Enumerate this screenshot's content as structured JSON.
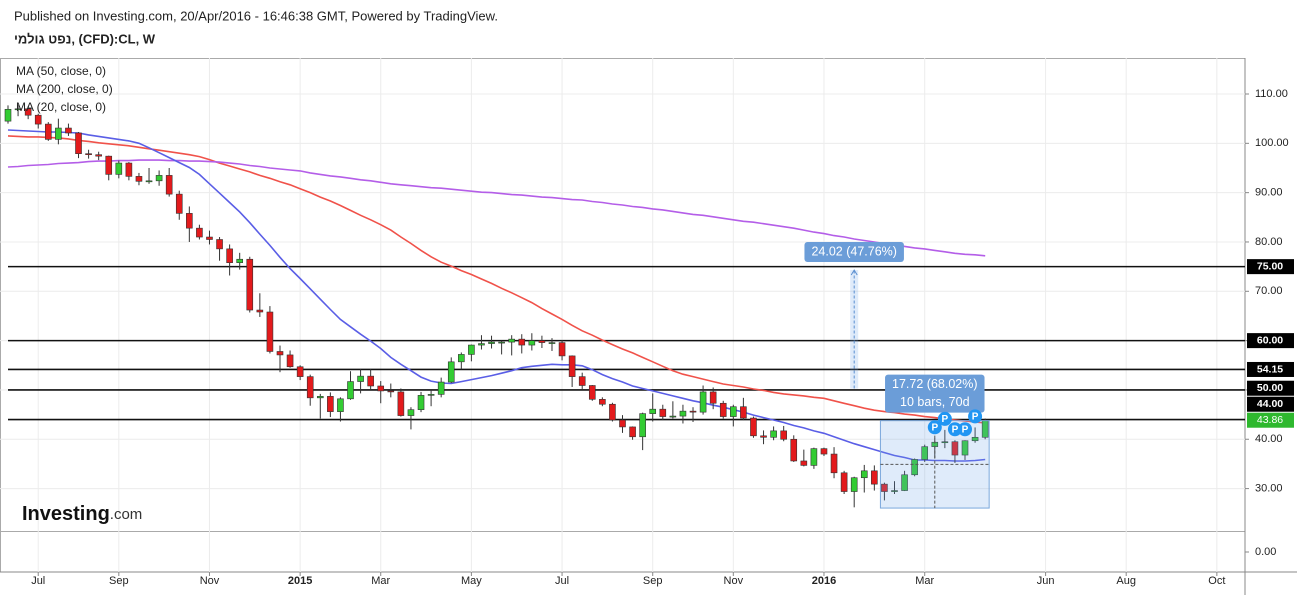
{
  "chart_data": {
    "type": "candlestick",
    "source": "Published on Investing.com, 20/Apr/2016 - 16:46:38 GMT, Powered by TradingView.",
    "title": "נפט גולמי, (CFD):CL, W",
    "watermark": {
      "brand": "Investing",
      "suffix": ".com"
    },
    "categories": [
      null,
      null,
      null,
      "Jul",
      null,
      null,
      null,
      null,
      null,
      null,
      null,
      "Sep",
      null,
      null,
      null,
      null,
      null,
      null,
      null,
      null,
      "Nov",
      null,
      null,
      null,
      null,
      null,
      null,
      null,
      null,
      "2015",
      null,
      null,
      null,
      null,
      null,
      null,
      null,
      "Mar",
      null,
      null,
      null,
      null,
      null,
      null,
      null,
      null,
      "May",
      null,
      null,
      null,
      null,
      null,
      null,
      null,
      null,
      "Jul",
      null,
      null,
      null,
      null,
      null,
      null,
      null,
      null,
      "Sep",
      null,
      null,
      null,
      null,
      null,
      null,
      null,
      "Nov",
      null,
      null,
      null,
      null,
      null,
      null,
      null,
      null,
      "2016",
      null,
      null,
      null,
      null,
      null,
      null,
      null,
      null,
      null,
      "Mar",
      null,
      null,
      null,
      null,
      null,
      null,
      null,
      null,
      null,
      null,
      null,
      "Jun",
      null,
      null,
      null,
      null,
      null,
      null,
      null,
      "Aug",
      null,
      null,
      null,
      null,
      null,
      null,
      null,
      null,
      "Oct",
      null,
      null
    ],
    "candles": {
      "up_color": "#33cc33",
      "down_color": "#e31a1c",
      "open": [
        104.5,
        106.9,
        107.0,
        105.7,
        103.9,
        100.8,
        103.1,
        102.1,
        97.9,
        97.7,
        97.4,
        93.7,
        96.0,
        93.3,
        92.3,
        92.4,
        93.5,
        89.7,
        85.8,
        82.8,
        81.0,
        80.5,
        78.6,
        75.8,
        76.5,
        66.2,
        65.8,
        57.8,
        57.1,
        54.7,
        52.7,
        48.4,
        48.7,
        45.6,
        48.2,
        51.7,
        52.8,
        50.8,
        49.8,
        49.6,
        44.8,
        46.0,
        48.9,
        49.1,
        51.6,
        55.7,
        57.2,
        59.1,
        59.4,
        59.7,
        59.7,
        60.3,
        59.1,
        60.0,
        59.6,
        59.6,
        56.9,
        52.7,
        50.9,
        48.1,
        47.1,
        43.9,
        42.5,
        40.5,
        45.2,
        46.1,
        44.6,
        44.7,
        45.7,
        45.5,
        49.6,
        47.3,
        44.6,
        46.6,
        44.3,
        40.7,
        40.4,
        41.7,
        40.0,
        35.6,
        34.7,
        38.1,
        37.0,
        33.2,
        29.4,
        32.2,
        33.6,
        30.9,
        29.4,
        29.6,
        32.8,
        35.9,
        38.5,
        39.4,
        39.5,
        36.8,
        39.7,
        40.4,
        null,
        null,
        null,
        null,
        null,
        null,
        null,
        null,
        null,
        null,
        null,
        null,
        null,
        null,
        null,
        null,
        null,
        null,
        null,
        null,
        null,
        null,
        null,
        null,
        null
      ],
      "high": [
        107.7,
        107.7,
        107.5,
        106.0,
        104.3,
        105.0,
        104.0,
        102.3,
        98.7,
        98.3,
        97.5,
        96.5,
        96.2,
        94.0,
        95.0,
        94.5,
        95.0,
        90.4,
        87.2,
        83.5,
        82.3,
        81.0,
        79.5,
        77.8,
        77.0,
        69.6,
        67.0,
        59.0,
        58.0,
        55.0,
        53.1,
        49.2,
        49.5,
        48.5,
        53.8,
        54.2,
        54.2,
        51.8,
        51.3,
        50.3,
        46.5,
        49.6,
        50.0,
        52.5,
        56.6,
        57.6,
        59.2,
        61.1,
        61.0,
        60.0,
        61.1,
        61.3,
        61.5,
        61.0,
        60.5,
        60.1,
        57.0,
        53.5,
        51.0,
        48.5,
        47.4,
        44.9,
        42.6,
        45.4,
        49.3,
        47.0,
        47.7,
        47.0,
        46.5,
        50.9,
        50.5,
        47.8,
        47.0,
        48.4,
        44.6,
        41.8,
        42.6,
        42.7,
        40.8,
        37.9,
        38.3,
        38.3,
        38.4,
        33.6,
        32.4,
        34.8,
        34.7,
        31.2,
        31.5,
        33.6,
        36.1,
        38.9,
        40.2,
        41.9,
        39.8,
        39.8,
        42.4,
        44.2,
        null,
        null,
        null,
        null,
        null,
        null,
        null,
        null,
        null,
        null,
        null,
        null,
        null,
        null,
        null,
        null,
        null,
        null,
        null,
        null,
        null,
        null,
        null,
        null,
        null
      ],
      "low": [
        104.0,
        105.5,
        104.9,
        103.0,
        100.5,
        99.8,
        101.5,
        97.0,
        96.9,
        96.6,
        92.5,
        92.9,
        92.5,
        91.5,
        91.8,
        91.4,
        89.2,
        84.5,
        80.0,
        80.5,
        79.5,
        76.2,
        73.2,
        74.4,
        65.7,
        64.8,
        57.4,
        53.6,
        54.5,
        52.0,
        46.8,
        44.2,
        44.5,
        43.6,
        48.0,
        49.3,
        50.0,
        47.3,
        48.5,
        44.6,
        42.0,
        45.5,
        46.7,
        48.5,
        51.4,
        54.2,
        55.8,
        58.2,
        58.4,
        57.2,
        57.0,
        57.4,
        58.0,
        58.5,
        57.9,
        56.0,
        50.6,
        50.2,
        47.8,
        46.7,
        43.6,
        41.3,
        39.9,
        37.8,
        43.6,
        43.9,
        44.2,
        43.2,
        43.5,
        45.0,
        46.1,
        44.2,
        42.6,
        43.9,
        40.3,
        39.0,
        39.8,
        39.6,
        35.4,
        34.5,
        34.0,
        36.6,
        32.1,
        28.9,
        26.2,
        29.2,
        29.6,
        27.6,
        28.9,
        29.5,
        32.5,
        35.4,
        36.2,
        38.2,
        35.2,
        35.8,
        39.3,
        40.0,
        null,
        null,
        null,
        null,
        null,
        null,
        null,
        null,
        null,
        null,
        null,
        null,
        null,
        null,
        null,
        null,
        null,
        null,
        null,
        null,
        null,
        null,
        null,
        null,
        null
      ],
      "close": [
        106.9,
        107.0,
        105.7,
        103.9,
        100.8,
        103.1,
        102.1,
        97.9,
        97.7,
        97.4,
        93.7,
        96.0,
        93.3,
        92.3,
        92.4,
        93.5,
        89.7,
        85.8,
        82.8,
        81.0,
        80.5,
        78.6,
        75.8,
        76.5,
        66.2,
        65.8,
        57.8,
        57.1,
        54.7,
        52.7,
        48.4,
        48.7,
        45.6,
        48.2,
        51.7,
        52.8,
        50.8,
        49.8,
        49.6,
        44.8,
        46.0,
        48.9,
        49.1,
        51.6,
        55.7,
        57.2,
        59.1,
        59.4,
        59.7,
        59.7,
        60.3,
        59.1,
        60.0,
        59.6,
        59.6,
        56.9,
        52.7,
        50.9,
        48.1,
        47.1,
        43.9,
        42.5,
        40.5,
        45.2,
        46.1,
        44.6,
        44.7,
        45.7,
        45.5,
        49.6,
        47.3,
        44.6,
        46.6,
        44.3,
        40.7,
        40.4,
        41.7,
        40.0,
        35.6,
        34.7,
        38.1,
        37.0,
        33.2,
        29.4,
        32.2,
        33.6,
        30.9,
        29.4,
        29.6,
        32.8,
        35.9,
        38.5,
        39.4,
        39.5,
        36.8,
        39.7,
        40.4,
        43.86,
        null,
        null,
        null,
        null,
        null,
        null,
        null,
        null,
        null,
        null,
        null,
        null,
        null,
        null,
        null,
        null,
        null,
        null,
        null,
        null,
        null,
        null,
        null,
        null,
        null
      ]
    },
    "series": [
      {
        "name": "MA (50, close, 0)",
        "color": "#f0524a",
        "values": [
          101.5,
          101.4,
          101.3,
          101.3,
          101.2,
          101.1,
          100.9,
          100.6,
          100.4,
          100.1,
          99.9,
          99.7,
          99.5,
          99.2,
          98.9,
          98.6,
          98.3,
          98.0,
          97.7,
          97.3,
          96.7,
          96.0,
          95.4,
          94.8,
          94.2,
          93.5,
          92.9,
          92.2,
          91.6,
          90.8,
          90.0,
          89.1,
          88.3,
          87.4,
          86.4,
          85.4,
          84.5,
          83.5,
          82.4,
          81.0,
          79.7,
          78.3,
          77.0,
          75.9,
          75.1,
          74.2,
          73.4,
          72.5,
          71.6,
          70.6,
          69.7,
          68.7,
          67.7,
          66.5,
          65.4,
          64.3,
          63.1,
          62.0,
          61.1,
          60.1,
          59.2,
          58.3,
          57.5,
          56.6,
          55.7,
          54.8,
          53.9,
          53.2,
          52.7,
          52.2,
          51.7,
          51.2,
          50.9,
          50.6,
          50.2,
          49.9,
          49.5,
          49.2,
          49.0,
          48.8,
          48.5,
          48.3,
          47.8,
          47.3,
          46.8,
          46.3,
          45.9,
          45.6,
          45.4,
          45.1,
          44.9,
          44.6,
          44.4,
          44.1,
          43.9,
          43.7,
          43.5,
          43.3,
          null,
          null,
          null,
          null,
          null,
          null,
          null,
          null,
          null,
          null,
          null,
          null,
          null,
          null,
          null,
          null,
          null,
          null,
          null,
          null,
          null,
          null,
          null,
          null,
          null
        ]
      },
      {
        "name": "MA (200, close, 0)",
        "color": "#b45ee8",
        "values": [
          95.2,
          95.3,
          95.5,
          95.6,
          95.7,
          95.9,
          96.0,
          96.1,
          96.3,
          96.4,
          96.4,
          96.5,
          96.5,
          96.6,
          96.6,
          96.6,
          96.5,
          96.5,
          96.4,
          96.4,
          96.3,
          96.2,
          96.0,
          95.8,
          95.5,
          95.3,
          95.0,
          94.8,
          94.6,
          94.4,
          94.0,
          93.7,
          93.4,
          93.2,
          92.9,
          92.6,
          92.4,
          92.1,
          91.8,
          91.6,
          91.4,
          91.2,
          91.0,
          90.9,
          90.7,
          90.5,
          90.3,
          90.1,
          90.0,
          89.8,
          89.6,
          89.5,
          89.3,
          89.1,
          89.0,
          88.8,
          88.6,
          88.5,
          88.2,
          88.0,
          87.7,
          87.5,
          87.2,
          87.0,
          86.7,
          86.5,
          86.2,
          85.9,
          85.6,
          85.4,
          85.1,
          84.8,
          84.5,
          84.2,
          84.0,
          83.7,
          83.4,
          83.1,
          82.8,
          82.4,
          82.0,
          81.7,
          81.3,
          81.0,
          80.6,
          80.3,
          80.0,
          79.7,
          79.4,
          79.1,
          78.8,
          78.6,
          78.3,
          78.0,
          77.7,
          77.5,
          77.4,
          77.2,
          null,
          null,
          null,
          null,
          null,
          null,
          null,
          null,
          null,
          null,
          null,
          null,
          null,
          null,
          null,
          null,
          null,
          null,
          null,
          null,
          null,
          null,
          null,
          null,
          null
        ]
      },
      {
        "name": "MA (20, close, 0)",
        "color": "#5a5ee6",
        "values": [
          102.7,
          102.6,
          102.5,
          102.4,
          102.3,
          102.3,
          102.2,
          102.1,
          101.7,
          101.4,
          101.1,
          100.8,
          100.5,
          100.0,
          99.1,
          98.1,
          97.1,
          96.1,
          95.1,
          93.7,
          91.8,
          89.9,
          88.0,
          86.1,
          83.9,
          81.6,
          79.3,
          76.9,
          74.6,
          72.6,
          70.5,
          68.4,
          66.3,
          64.3,
          62.8,
          61.3,
          59.9,
          58.4,
          56.6,
          55.2,
          53.9,
          52.6,
          51.8,
          51.4,
          51.3,
          51.7,
          52.1,
          52.5,
          52.9,
          53.4,
          53.9,
          54.5,
          54.8,
          55.0,
          55.2,
          55.1,
          55.1,
          54.9,
          54.1,
          53.1,
          52.3,
          51.6,
          50.8,
          50.3,
          49.8,
          49.3,
          48.8,
          48.3,
          47.8,
          47.4,
          46.9,
          46.5,
          46.0,
          45.5,
          44.9,
          44.4,
          43.9,
          43.4,
          42.8,
          42.3,
          41.7,
          41.2,
          40.5,
          39.8,
          39.1,
          38.5,
          37.9,
          37.3,
          36.7,
          36.3,
          35.8,
          35.8,
          35.7,
          35.7,
          35.6,
          35.6,
          35.7,
          35.9,
          null,
          null,
          null,
          null,
          null,
          null,
          null,
          null,
          null,
          null,
          null,
          null,
          null,
          null,
          null,
          null,
          null,
          null,
          null,
          null,
          null,
          null,
          null,
          null,
          null
        ]
      }
    ],
    "levels": [
      {
        "value": 75,
        "label": "75.00"
      },
      {
        "value": 60,
        "label": "60.00"
      },
      {
        "value": 54.15,
        "label": "54.15"
      },
      {
        "value": 50,
        "label": "50.00"
      },
      {
        "value": 44,
        "label": "44.00"
      }
    ],
    "last_price": {
      "value": 43.86,
      "label": "43.86",
      "color": "#2eb82e"
    },
    "measures": [
      {
        "label": "24.02 (47.76%)",
        "from": 50.29,
        "to": 74.31,
        "start": 84,
        "end": 84
      },
      {
        "label": "17.72 (68.02%)",
        "sublabel": "10 bars, 70d",
        "from": 26.05,
        "to": 43.77,
        "start": 87,
        "end": 97
      }
    ],
    "pivots": [
      {
        "bar": 92,
        "label": "P"
      },
      {
        "bar": 93,
        "label": "P"
      },
      {
        "bar": 94,
        "label": "P"
      },
      {
        "bar": 95,
        "label": "P"
      },
      {
        "bar": 96,
        "label": "P"
      }
    ],
    "ylim": [
      21.4,
      117.3
    ],
    "yticks": [
      {
        "value": 30,
        "label": "30.00"
      },
      {
        "value": 40,
        "label": "40.00"
      },
      {
        "value": 50,
        "label": "50.00"
      },
      {
        "value": 60,
        "label": "60.00"
      },
      {
        "value": 70,
        "label": "70.00"
      },
      {
        "value": 80,
        "label": "80.00"
      },
      {
        "value": 90,
        "label": "90.00"
      },
      {
        "value": 100,
        "label": "100.00"
      },
      {
        "value": 110,
        "label": "110.00"
      }
    ],
    "pane2": {
      "ylim": [
        -1,
        1
      ],
      "yticks": [
        {
          "value": 0,
          "label": "0.00"
        }
      ]
    },
    "grid": true
  }
}
